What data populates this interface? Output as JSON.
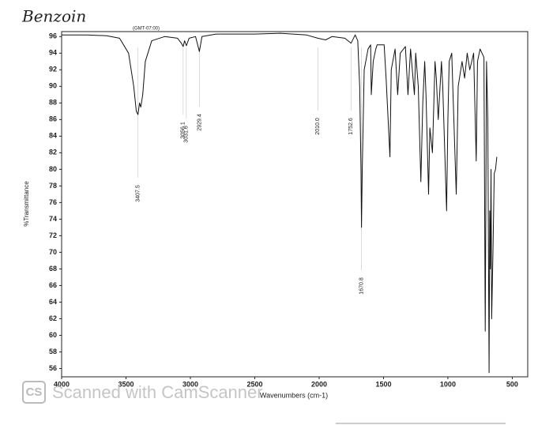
{
  "chart_data": {
    "type": "line",
    "title": "Benzoin",
    "subtitle": "(GMT-07:00)",
    "x_label": "Wavenumbers (cm-1)",
    "y_label": "%Transmittance",
    "watermark": "Scanned with CamScanner",
    "watermark_logo": "CS",
    "xlim": [
      4000,
      380
    ],
    "ylim": [
      55,
      96.6
    ],
    "xticks": [
      4000,
      3500,
      3000,
      2500,
      2000,
      1500,
      1000,
      500
    ],
    "yticks": [
      56,
      58,
      60,
      62,
      64,
      66,
      68,
      70,
      72,
      74,
      76,
      78,
      80,
      82,
      84,
      86,
      88,
      90,
      92,
      94,
      96
    ],
    "x_reversed": true,
    "series": [
      {
        "name": "Benzoin",
        "color": "#111111",
        "x": [
          4000,
          3800,
          3650,
          3550,
          3480,
          3440,
          3420,
          3407,
          3395,
          3385,
          3370,
          3350,
          3300,
          3200,
          3100,
          3070,
          3056,
          3045,
          3031,
          3010,
          2960,
          2930,
          2910,
          2800,
          2500,
          2300,
          2100,
          2010,
          1950,
          1900,
          1800,
          1752,
          1720,
          1700,
          1685,
          1675,
          1671,
          1665,
          1650,
          1620,
          1600,
          1595,
          1580,
          1560,
          1550,
          1495,
          1480,
          1450,
          1440,
          1410,
          1390,
          1370,
          1330,
          1310,
          1290,
          1260,
          1250,
          1230,
          1210,
          1195,
          1180,
          1170,
          1150,
          1140,
          1120,
          1100,
          1090,
          1075,
          1050,
          1040,
          1010,
          1000,
          990,
          970,
          960,
          935,
          920,
          890,
          870,
          850,
          830,
          800,
          780,
          770,
          750,
          720,
          710,
          700,
          690,
          680,
          675,
          670,
          665,
          660,
          650,
          640,
          630,
          620
        ],
        "values": [
          96.2,
          96.2,
          96.1,
          95.8,
          94,
          90,
          87,
          86.6,
          88,
          87.5,
          89,
          93,
          95.5,
          96,
          95.8,
          95.2,
          94.8,
          95.5,
          94.9,
          95.8,
          96,
          94.2,
          96,
          96.3,
          96.3,
          96.4,
          96.2,
          95.8,
          95.6,
          96,
          95.8,
          95.2,
          96.2,
          95.5,
          90,
          80,
          73,
          80,
          92,
          94.5,
          95,
          89,
          93,
          94.5,
          95,
          95,
          91,
          81.5,
          92,
          94.5,
          89,
          94,
          94.8,
          89,
          94.5,
          89,
          94,
          90,
          78.5,
          88,
          93,
          89,
          77,
          85,
          82,
          93,
          91,
          86,
          93,
          90,
          75,
          86,
          93,
          94,
          89,
          77,
          90,
          93,
          91,
          94,
          92,
          94,
          81,
          93,
          94.5,
          93.5,
          60.5,
          93,
          86,
          55.5,
          75,
          68,
          80,
          62,
          70,
          79.5,
          80,
          81.5
        ]
      }
    ],
    "annotations": [
      {
        "x": 3407.5,
        "label": "3407.5"
      },
      {
        "x": 3056.1,
        "label": "3056.1"
      },
      {
        "x": 3031.6,
        "label": "3031.6"
      },
      {
        "x": 2929.4,
        "label": "2929.4"
      },
      {
        "x": 2010.0,
        "label": "2010.0"
      },
      {
        "x": 1752.6,
        "label": "1752.6"
      },
      {
        "x": 1670.8,
        "label": "1670.8"
      }
    ]
  }
}
